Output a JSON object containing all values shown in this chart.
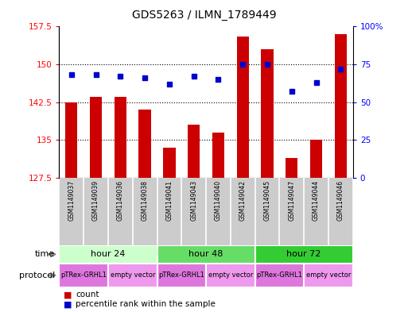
{
  "title": "GDS5263 / ILMN_1789449",
  "samples": [
    "GSM1149037",
    "GSM1149039",
    "GSM1149036",
    "GSM1149038",
    "GSM1149041",
    "GSM1149043",
    "GSM1149040",
    "GSM1149042",
    "GSM1149045",
    "GSM1149047",
    "GSM1149044",
    "GSM1149046"
  ],
  "bar_values": [
    142.5,
    143.5,
    143.5,
    141.0,
    133.5,
    138.0,
    136.5,
    155.5,
    153.0,
    131.5,
    135.0,
    156.0
  ],
  "bar_bottom": 127.5,
  "percentile_values": [
    68,
    68,
    67,
    66,
    62,
    67,
    65,
    75,
    75,
    57,
    63,
    72
  ],
  "ylim_left": [
    127.5,
    157.5
  ],
  "ylim_right": [
    0,
    100
  ],
  "yticks_left": [
    127.5,
    135,
    142.5,
    150,
    157.5
  ],
  "yticks_right": [
    0,
    25,
    50,
    75,
    100
  ],
  "ytick_labels_left": [
    "127.5",
    "135",
    "142.5",
    "150",
    "157.5"
  ],
  "ytick_labels_right": [
    "0",
    "25",
    "50",
    "75",
    "100%"
  ],
  "bar_color": "#cc0000",
  "percentile_color": "#0000cc",
  "time_groups": [
    {
      "label": "hour 24",
      "start": 0,
      "end": 3,
      "color": "#ccffcc"
    },
    {
      "label": "hour 48",
      "start": 4,
      "end": 7,
      "color": "#66dd66"
    },
    {
      "label": "hour 72",
      "start": 8,
      "end": 11,
      "color": "#33cc33"
    }
  ],
  "protocol_groups": [
    {
      "label": "pTRex-GRHL1",
      "start": 0,
      "end": 1,
      "color": "#dd77dd"
    },
    {
      "label": "empty vector",
      "start": 2,
      "end": 3,
      "color": "#ee99ee"
    },
    {
      "label": "pTRex-GRHL1",
      "start": 4,
      "end": 5,
      "color": "#dd77dd"
    },
    {
      "label": "empty vector",
      "start": 6,
      "end": 7,
      "color": "#ee99ee"
    },
    {
      "label": "pTRex-GRHL1",
      "start": 8,
      "end": 9,
      "color": "#dd77dd"
    },
    {
      "label": "empty vector",
      "start": 10,
      "end": 11,
      "color": "#ee99ee"
    }
  ],
  "legend_count_color": "#cc0000",
  "legend_percentile_color": "#0000cc",
  "sample_bg_color": "#cccccc",
  "fig_width": 5.13,
  "fig_height": 3.93,
  "fig_dpi": 100
}
